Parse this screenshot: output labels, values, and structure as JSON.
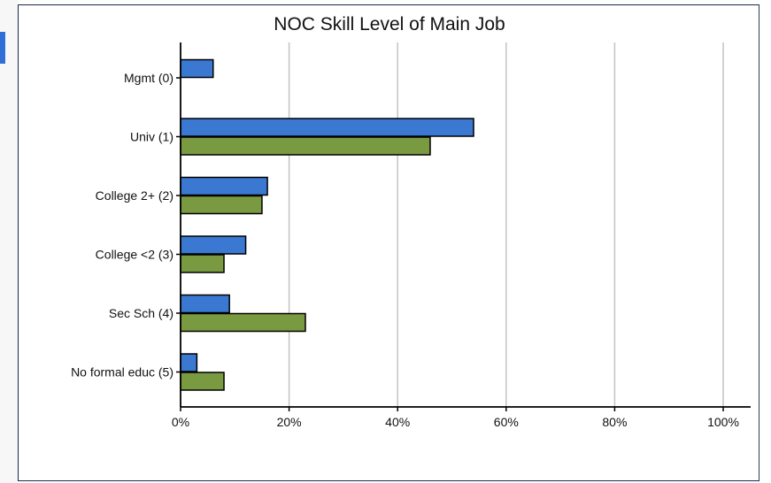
{
  "chart_data": {
    "type": "bar",
    "orientation": "horizontal",
    "title": "NOC Skill Level of Main Job",
    "categories": [
      "Mgmt (0)",
      "Univ (1)",
      "College 2+ (2)",
      "College <2 (3)",
      "Sec Sch (4)",
      "No formal educ (5)"
    ],
    "series": [
      {
        "color": "#3a78d2",
        "values": [
          6,
          54,
          16,
          12,
          9,
          3
        ]
      },
      {
        "color": "#7a9a41",
        "values": [
          0,
          46,
          15,
          8,
          23,
          8
        ]
      }
    ],
    "xlim": [
      0,
      100
    ],
    "xticks": [
      "0%",
      "20%",
      "40%",
      "60%",
      "80%",
      "100%"
    ],
    "grid": true,
    "legend": "none"
  }
}
